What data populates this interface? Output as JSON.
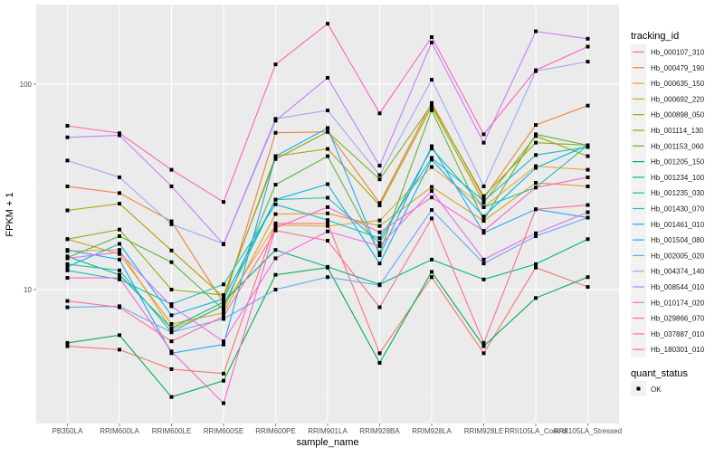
{
  "chart_data": {
    "type": "line",
    "title": "",
    "xlabel": "sample_name",
    "ylabel": "FPKM + 1",
    "yscale": "log10",
    "ylim": [
      2.6,
      210
    ],
    "yticks": [
      10,
      100
    ],
    "ytick_labels": [
      "10",
      "100"
    ],
    "grid": true,
    "legend_position": "right",
    "categories": [
      "PB350LA",
      "RRIM600LA",
      "RRIM600LE",
      "RRIM600SE",
      "RRIM600PE",
      "RRIM901LA",
      "RRIM928BA",
      "RRIM928LA",
      "RRIM928LE",
      "RRII105LA_Control",
      "RRII105LA_Stressed"
    ],
    "legend_title": "tracking_id",
    "shape_legend_title": "quant_status",
    "shape_legend_items": [
      "OK"
    ],
    "series": [
      {
        "name": "Hb_000107_310",
        "color": "#F8766D",
        "values": [
          5.3,
          5.1,
          4.1,
          3.9,
          21.0,
          21.0,
          4.9,
          11.5,
          4.9,
          12.8,
          10.3
        ]
      },
      {
        "name": "Hb_000479_190",
        "color": "#EC8239",
        "values": [
          31.8,
          29.5,
          21.5,
          8.6,
          58.0,
          58.6,
          26.4,
          81.0,
          27.8,
          63.3,
          78.6
        ]
      },
      {
        "name": "Hb_000635_150",
        "color": "#F0A33A",
        "values": [
          15.4,
          15.6,
          6.4,
          8.3,
          20.6,
          20.4,
          21.7,
          39.5,
          25.2,
          39.9,
          38.3
        ]
      },
      {
        "name": "Hb_000692_220",
        "color": "#D8A126",
        "values": [
          17.6,
          14.9,
          6.8,
          7.7,
          23.3,
          23.5,
          20.4,
          31.6,
          21.6,
          33.1,
          31.8
        ]
      },
      {
        "name": "Hb_000898_050",
        "color": "#AEA200",
        "values": [
          24.3,
          26.2,
          15.5,
          9.2,
          44.6,
          48.4,
          25.7,
          77.8,
          26.5,
          55.9,
          44.6
        ]
      },
      {
        "name": "Hb_001114_130",
        "color": "#8BAE1F",
        "values": [
          17.6,
          19.6,
          10.0,
          9.4,
          43.2,
          58.6,
          34.4,
          79.4,
          28.5,
          51.9,
          50.4
        ]
      },
      {
        "name": "Hb_001153_060",
        "color": "#5EB43A",
        "values": [
          14.3,
          18.2,
          13.6,
          8.0,
          32.4,
          44.6,
          15.1,
          74.7,
          21.8,
          57.0,
          50.4
        ]
      },
      {
        "name": "Hb_001205_150",
        "color": "#00B050",
        "values": [
          5.5,
          6.0,
          3.0,
          3.6,
          11.8,
          12.8,
          4.4,
          12.2,
          5.3,
          9.1,
          11.5
        ]
      },
      {
        "name": "Hb_001234_100",
        "color": "#00B681",
        "values": [
          14.5,
          11.8,
          6.5,
          8.7,
          15.6,
          12.9,
          10.6,
          14.0,
          11.2,
          13.3,
          17.6
        ]
      },
      {
        "name": "Hb_001235_030",
        "color": "#1FBFA8",
        "values": [
          13.3,
          12.4,
          6.2,
          8.4,
          27.4,
          28.0,
          16.9,
          48.6,
          25.2,
          31.4,
          50.4
        ]
      },
      {
        "name": "Hb_001430_070",
        "color": "#1CBDC2",
        "values": [
          12.4,
          11.2,
          8.5,
          10.6,
          26.0,
          21.8,
          17.8,
          43.8,
          27.0,
          45.2,
          49.4
        ]
      },
      {
        "name": "Hb_001461_010",
        "color": "#00B6E4",
        "values": [
          12.9,
          16.7,
          7.5,
          9.0,
          27.4,
          32.6,
          13.4,
          42.9,
          22.7,
          39.1,
          50.4
        ]
      },
      {
        "name": "Hb_001504_080",
        "color": "#27A5F2",
        "values": [
          15.6,
          14.0,
          4.9,
          5.4,
          44.6,
          61.2,
          14.7,
          49.9,
          18.9,
          24.6,
          22.4
        ]
      },
      {
        "name": "Hb_002005_020",
        "color": "#68A6F8",
        "values": [
          8.2,
          8.3,
          6.2,
          7.2,
          10.0,
          11.5,
          10.5,
          24.4,
          13.4,
          18.2,
          22.4
        ]
      },
      {
        "name": "Hb_004374_140",
        "color": "#A3A5FF",
        "values": [
          42.5,
          35.2,
          20.8,
          16.7,
          67.8,
          74.5,
          36.1,
          105.1,
          31.8,
          115.7,
          128.7
        ]
      },
      {
        "name": "Hb_008544_010",
        "color": "#C77CFF",
        "values": [
          55.1,
          56.4,
          31.8,
          16.6,
          66.4,
          107.4,
          40.1,
          159.5,
          51.9,
          180.9,
          166.3
        ]
      },
      {
        "name": "Hb_010174_020",
        "color": "#E86FEA",
        "values": [
          14.2,
          15.2,
          8.3,
          5.6,
          14.2,
          19.2,
          16.3,
          30.2,
          14.0,
          18.8,
          23.8
        ]
      },
      {
        "name": "Hb_029866_070",
        "color": "#F568C9",
        "values": [
          11.4,
          11.4,
          5.0,
          2.8,
          20.0,
          25.2,
          19.0,
          28.1,
          19.3,
          31.4,
          35.2
        ]
      },
      {
        "name": "Hb_037887_010",
        "color": "#FF62BC",
        "values": [
          62.7,
          57.7,
          38.3,
          26.7,
          124.8,
          197.0,
          72.1,
          169.5,
          57.0,
          116.9,
          152.3
        ]
      },
      {
        "name": "Hb_180301_010",
        "color": "#FB6F94",
        "values": [
          8.8,
          8.2,
          5.6,
          7.4,
          19.4,
          17.3,
          8.2,
          22.2,
          5.5,
          24.6,
          25.8
        ]
      }
    ]
  }
}
